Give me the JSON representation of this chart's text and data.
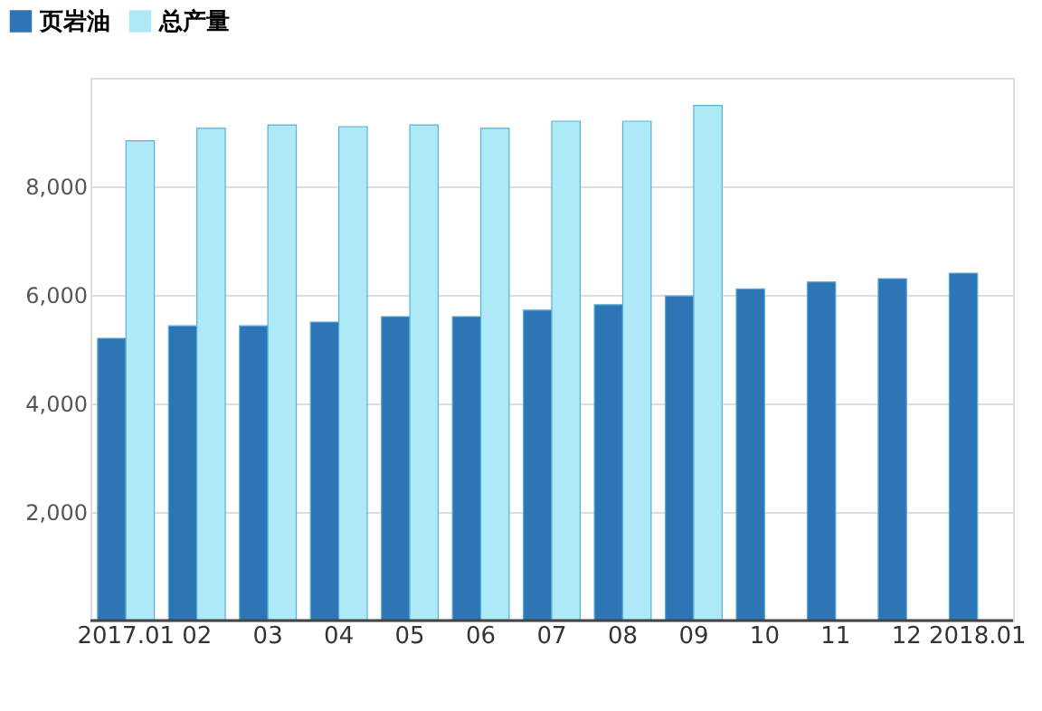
{
  "chart_data": {
    "type": "bar",
    "categories": [
      "2017.01",
      "02",
      "03",
      "04",
      "05",
      "06",
      "07",
      "08",
      "09",
      "10",
      "11",
      "12",
      "2018.01"
    ],
    "series": [
      {
        "name": "页岩油",
        "color": "#2e75b6",
        "values": [
          5200,
          5430,
          5430,
          5500,
          5600,
          5600,
          5720,
          5820,
          5980,
          6110,
          6240,
          6300,
          6400
        ]
      },
      {
        "name": "总产量",
        "color": "#aee9f8",
        "values": [
          8840,
          9070,
          9130,
          9100,
          9130,
          9070,
          9200,
          9200,
          9490,
          null,
          null,
          null,
          null
        ]
      }
    ],
    "ylim": [
      0,
      10000
    ],
    "yticks": [
      {
        "value": 2000,
        "label": "2,000"
      },
      {
        "value": 4000,
        "label": "4,000"
      },
      {
        "value": 6000,
        "label": "6,000"
      },
      {
        "value": 8000,
        "label": "8,000"
      }
    ],
    "grid": "y",
    "legend": "top left"
  }
}
